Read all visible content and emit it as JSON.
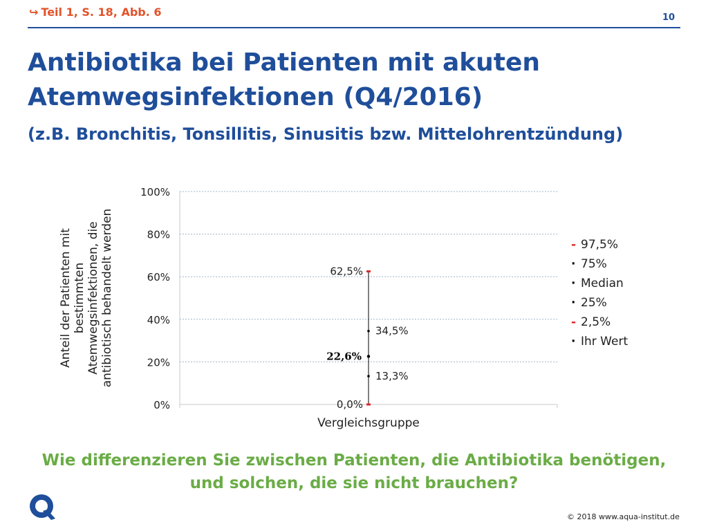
{
  "header": {
    "reference": "Teil 1, S. 18, Abb. 6",
    "page_number": "10"
  },
  "title": "Antibiotika bei Patienten mit akuten Atemwegsinfektionen (Q4/2016)",
  "subtitle": "(z.B. Bronchitis, Tonsillitis, Sinusitis bzw. Mittelohrentzündung)",
  "question": "Wie differenzieren Sie zwischen Patienten, die Antibiotika benötigen, und solchen, die sie nicht brauchen?",
  "footer": {
    "copyright": "© 2018 www.aqua-institut.de",
    "logo_letter": "Q"
  },
  "colors": {
    "accent": "#1f4e9a",
    "reference": "#e2532a",
    "question": "#6aac46",
    "marker_red": "#e0262a",
    "marker_black": "#000000"
  },
  "legend": [
    {
      "marker": "-",
      "color": "#e0262a",
      "label": "97,5%"
    },
    {
      "marker": "·",
      "color": "#000000",
      "label": "75%"
    },
    {
      "marker": "·",
      "color": "#000000",
      "label": "Median"
    },
    {
      "marker": "·",
      "color": "#000000",
      "label": "25%"
    },
    {
      "marker": "-",
      "color": "#e0262a",
      "label": "2,5%"
    },
    {
      "marker": "·",
      "color": "#000000",
      "label": "Ihr Wert"
    }
  ],
  "chart_data": {
    "type": "scatter",
    "xlabel": "Vergleichsgruppe",
    "ylabel": [
      "Anteil der Patienten mit",
      "bestimmten",
      "Atemwegsinfektionen, die",
      "antibiotisch behandelt werden"
    ],
    "categories": [
      "Vergleichsgruppe"
    ],
    "ylim": [
      0,
      100
    ],
    "yticks": [
      0,
      20,
      40,
      60,
      80,
      100
    ],
    "ytick_labels": [
      "0%",
      "20%",
      "40%",
      "60%",
      "80%",
      "100%"
    ],
    "grid": true,
    "legend_position": "right",
    "series": [
      {
        "name": "97,5%",
        "value": 62.5,
        "label": "62,5%"
      },
      {
        "name": "75%",
        "value": 34.5,
        "label": "34,5%"
      },
      {
        "name": "Median",
        "value": 22.6,
        "label": "22,6%"
      },
      {
        "name": "25%",
        "value": 13.3,
        "label": "13,3%"
      },
      {
        "name": "2,5%",
        "value": 0.0,
        "label": "0,0%"
      },
      {
        "name": "Ihr Wert",
        "value": 22.6,
        "label": "22,6%"
      }
    ]
  }
}
